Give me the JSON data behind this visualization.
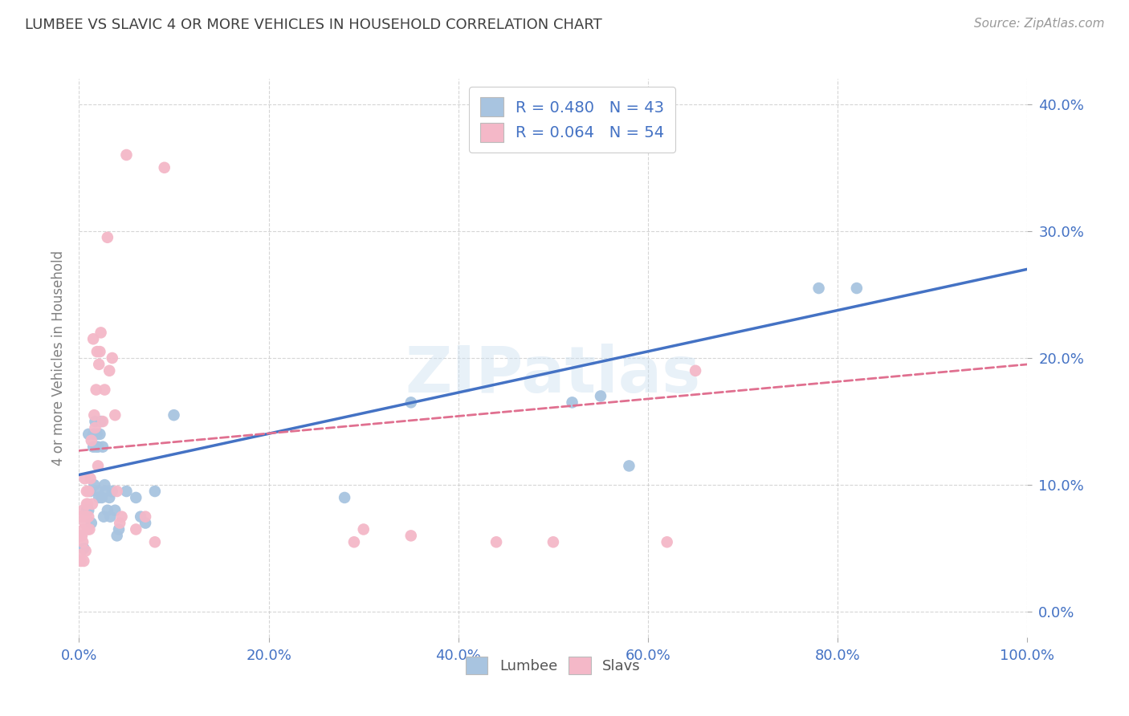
{
  "title": "LUMBEE VS SLAVIC 4 OR MORE VEHICLES IN HOUSEHOLD CORRELATION CHART",
  "source": "Source: ZipAtlas.com",
  "ylabel": "4 or more Vehicles in Household",
  "watermark": "ZIPatlas",
  "xlim": [
    0,
    1.0
  ],
  "ylim": [
    -0.02,
    0.42
  ],
  "xticks": [
    0.0,
    0.2,
    0.4,
    0.6,
    0.8,
    1.0
  ],
  "xtick_labels": [
    "0.0%",
    "20.0%",
    "40.0%",
    "60.0%",
    "80.0%",
    "100.0%"
  ],
  "yticks": [
    0.0,
    0.1,
    0.2,
    0.3,
    0.4
  ],
  "ytick_labels": [
    "0.0%",
    "10.0%",
    "20.0%",
    "30.0%",
    "40.0%"
  ],
  "lumbee_color": "#a8c4e0",
  "slavic_color": "#f4b8c8",
  "lumbee_line_color": "#4472c4",
  "slavic_line_color": "#e07090",
  "background_color": "#ffffff",
  "grid_color": "#cccccc",
  "title_color": "#404040",
  "axis_color": "#4472c4",
  "ylabel_color": "#808080",
  "lumbee_scatter_x": [
    0.005,
    0.008,
    0.01,
    0.01,
    0.012,
    0.013,
    0.015,
    0.015,
    0.016,
    0.016,
    0.017,
    0.018,
    0.019,
    0.02,
    0.02,
    0.021,
    0.022,
    0.023,
    0.024,
    0.025,
    0.026,
    0.027,
    0.028,
    0.03,
    0.032,
    0.033,
    0.035,
    0.038,
    0.04,
    0.042,
    0.05,
    0.06,
    0.065,
    0.07,
    0.08,
    0.1,
    0.28,
    0.35,
    0.52,
    0.55,
    0.58,
    0.78,
    0.82
  ],
  "lumbee_scatter_y": [
    0.05,
    0.08,
    0.14,
    0.08,
    0.095,
    0.07,
    0.14,
    0.13,
    0.14,
    0.1,
    0.15,
    0.13,
    0.14,
    0.13,
    0.095,
    0.09,
    0.14,
    0.15,
    0.09,
    0.13,
    0.075,
    0.1,
    0.095,
    0.08,
    0.09,
    0.075,
    0.095,
    0.08,
    0.06,
    0.065,
    0.095,
    0.09,
    0.075,
    0.07,
    0.095,
    0.155,
    0.09,
    0.165,
    0.165,
    0.17,
    0.115,
    0.255,
    0.255
  ],
  "slavic_scatter_x": [
    0.001,
    0.001,
    0.002,
    0.002,
    0.003,
    0.003,
    0.004,
    0.004,
    0.005,
    0.005,
    0.006,
    0.006,
    0.007,
    0.007,
    0.008,
    0.008,
    0.009,
    0.009,
    0.01,
    0.01,
    0.011,
    0.012,
    0.013,
    0.014,
    0.015,
    0.016,
    0.017,
    0.018,
    0.019,
    0.02,
    0.021,
    0.022,
    0.023,
    0.025,
    0.027,
    0.03,
    0.032,
    0.035,
    0.038,
    0.04,
    0.043,
    0.045,
    0.05,
    0.06,
    0.07,
    0.08,
    0.09,
    0.29,
    0.3,
    0.35,
    0.44,
    0.5,
    0.62,
    0.65
  ],
  "slavic_scatter_y": [
    0.045,
    0.06,
    0.04,
    0.06,
    0.06,
    0.075,
    0.055,
    0.08,
    0.04,
    0.065,
    0.07,
    0.105,
    0.048,
    0.075,
    0.085,
    0.095,
    0.065,
    0.085,
    0.075,
    0.095,
    0.065,
    0.105,
    0.135,
    0.085,
    0.215,
    0.155,
    0.145,
    0.175,
    0.205,
    0.115,
    0.195,
    0.205,
    0.22,
    0.15,
    0.175,
    0.295,
    0.19,
    0.2,
    0.155,
    0.095,
    0.07,
    0.075,
    0.36,
    0.065,
    0.075,
    0.055,
    0.35,
    0.055,
    0.065,
    0.06,
    0.055,
    0.055,
    0.055,
    0.19
  ],
  "lumbee_line_x": [
    0.0,
    1.0
  ],
  "lumbee_line_y": [
    0.108,
    0.27
  ],
  "slavic_line_x": [
    0.0,
    1.0
  ],
  "slavic_line_y": [
    0.127,
    0.195
  ]
}
